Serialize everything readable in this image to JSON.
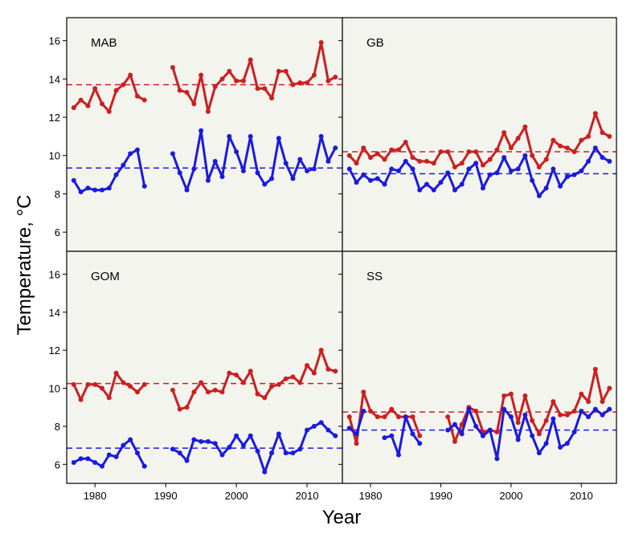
{
  "figure": {
    "ylabel": "Temperature, °C",
    "xlabel": "Year",
    "background": "#f4f4ef",
    "colors": {
      "red": "#cc1f1f",
      "blue": "#1a1ae0"
    }
  },
  "chart_data": [
    {
      "type": "line",
      "panel": "MAB",
      "xlim": [
        1976,
        2015
      ],
      "ylim": [
        5,
        17.2
      ],
      "x_ticks": [
        "1980",
        "1990",
        "2000",
        "2010"
      ],
      "y_ticks": [
        "6",
        "8",
        "10",
        "12",
        "14",
        "16"
      ],
      "x": [
        1977,
        1978,
        1979,
        1980,
        1981,
        1982,
        1983,
        1984,
        1985,
        1986,
        1987,
        1988,
        1989,
        1990,
        1991,
        1992,
        1993,
        1994,
        1995,
        1996,
        1997,
        1998,
        1999,
        2000,
        2001,
        2002,
        2003,
        2004,
        2005,
        2006,
        2007,
        2008,
        2009,
        2010,
        2011,
        2012,
        2013,
        2014
      ],
      "series": [
        {
          "color": "red",
          "mean": 13.7,
          "values": [
            12.5,
            12.9,
            12.6,
            13.5,
            12.7,
            12.3,
            13.4,
            13.7,
            14.2,
            13.1,
            12.9,
            null,
            null,
            null,
            14.6,
            13.4,
            13.3,
            12.7,
            14.2,
            12.3,
            13.6,
            14.0,
            14.4,
            13.9,
            13.9,
            15.0,
            13.5,
            13.5,
            13.0,
            14.4,
            14.4,
            13.7,
            13.8,
            13.8,
            14.2,
            15.9,
            13.9,
            14.1
          ]
        },
        {
          "color": "blue",
          "mean": 9.35,
          "values": [
            8.7,
            8.1,
            8.3,
            8.2,
            8.2,
            8.3,
            9.0,
            9.5,
            10.1,
            10.3,
            8.4,
            null,
            null,
            null,
            10.1,
            9.1,
            8.2,
            9.3,
            11.3,
            8.7,
            9.7,
            8.9,
            11.0,
            10.2,
            9.2,
            11.0,
            9.1,
            8.5,
            8.8,
            10.9,
            9.6,
            8.8,
            9.8,
            9.2,
            9.3,
            11.0,
            9.7,
            10.4
          ]
        }
      ]
    },
    {
      "type": "line",
      "panel": "GB",
      "xlim": [
        1976,
        2015
      ],
      "ylim": [
        5,
        17.2
      ],
      "x_ticks": [
        "1980",
        "1990",
        "2000",
        "2010"
      ],
      "y_ticks": [
        "6",
        "8",
        "10",
        "12",
        "14",
        "16"
      ],
      "x": [
        1977,
        1978,
        1979,
        1980,
        1981,
        1982,
        1983,
        1984,
        1985,
        1986,
        1987,
        1988,
        1989,
        1990,
        1991,
        1992,
        1993,
        1994,
        1995,
        1996,
        1997,
        1998,
        1999,
        2000,
        2001,
        2002,
        2003,
        2004,
        2005,
        2006,
        2007,
        2008,
        2009,
        2010,
        2011,
        2012,
        2013,
        2014
      ],
      "series": [
        {
          "color": "red",
          "mean": 10.2,
          "values": [
            10.0,
            9.6,
            10.4,
            9.9,
            10.1,
            9.8,
            10.3,
            10.3,
            10.7,
            9.9,
            9.7,
            9.7,
            9.6,
            10.2,
            10.2,
            9.4,
            9.6,
            10.2,
            10.2,
            9.5,
            9.8,
            10.3,
            11.2,
            10.4,
            10.9,
            11.5,
            10.0,
            9.4,
            9.8,
            10.8,
            10.5,
            10.4,
            10.2,
            10.8,
            11.0,
            12.2,
            11.2,
            11.0
          ]
        },
        {
          "color": "blue",
          "mean": 9.05,
          "values": [
            9.3,
            8.6,
            9.0,
            8.7,
            8.8,
            8.5,
            9.3,
            9.2,
            9.7,
            9.3,
            8.2,
            8.5,
            8.2,
            8.6,
            9.1,
            8.2,
            8.5,
            9.3,
            9.6,
            8.3,
            9.0,
            9.1,
            9.9,
            9.2,
            9.3,
            10.0,
            8.7,
            7.9,
            8.3,
            9.3,
            8.4,
            8.9,
            9.0,
            9.2,
            9.7,
            10.4,
            9.9,
            9.7
          ]
        }
      ]
    },
    {
      "type": "line",
      "panel": "GOM",
      "xlim": [
        1976,
        2015
      ],
      "ylim": [
        5,
        17.2
      ],
      "x_ticks": [
        "1980",
        "1990",
        "2000",
        "2010"
      ],
      "y_ticks": [
        "6",
        "8",
        "10",
        "12",
        "14",
        "16"
      ],
      "x": [
        1977,
        1978,
        1979,
        1980,
        1981,
        1982,
        1983,
        1984,
        1985,
        1986,
        1987,
        1988,
        1989,
        1990,
        1991,
        1992,
        1993,
        1994,
        1995,
        1996,
        1997,
        1998,
        1999,
        2000,
        2001,
        2002,
        2003,
        2004,
        2005,
        2006,
        2007,
        2008,
        2009,
        2010,
        2011,
        2012,
        2013,
        2014
      ],
      "series": [
        {
          "color": "red",
          "mean": 10.25,
          "values": [
            10.2,
            9.4,
            10.2,
            10.2,
            10.0,
            9.5,
            10.8,
            10.3,
            10.1,
            9.8,
            10.2,
            null,
            null,
            null,
            9.9,
            8.9,
            9.0,
            9.8,
            10.3,
            9.8,
            9.9,
            9.8,
            10.8,
            10.7,
            10.3,
            10.9,
            9.7,
            9.5,
            10.1,
            10.2,
            10.5,
            10.6,
            10.3,
            11.2,
            10.8,
            12.0,
            11.0,
            10.9
          ]
        },
        {
          "color": "blue",
          "mean": 6.85,
          "values": [
            6.1,
            6.3,
            6.3,
            6.1,
            5.9,
            6.5,
            6.4,
            7.0,
            7.3,
            6.6,
            5.9,
            null,
            null,
            null,
            6.8,
            6.6,
            6.2,
            7.3,
            7.2,
            7.2,
            7.1,
            6.5,
            6.9,
            7.5,
            7.0,
            7.5,
            6.7,
            5.6,
            6.6,
            7.6,
            6.6,
            6.6,
            6.8,
            7.8,
            8.0,
            8.2,
            7.8,
            7.5
          ]
        }
      ]
    },
    {
      "type": "line",
      "panel": "SS",
      "xlim": [
        1976,
        2015
      ],
      "ylim": [
        5,
        17.2
      ],
      "x_ticks": [
        "1980",
        "1990",
        "2000",
        "2010"
      ],
      "y_ticks": [
        "6",
        "8",
        "10",
        "12",
        "14",
        "16"
      ],
      "x": [
        1977,
        1978,
        1979,
        1980,
        1981,
        1982,
        1983,
        1984,
        1985,
        1986,
        1987,
        1988,
        1989,
        1990,
        1991,
        1992,
        1993,
        1994,
        1995,
        1996,
        1997,
        1998,
        1999,
        2000,
        2001,
        2002,
        2003,
        2004,
        2005,
        2006,
        2007,
        2008,
        2009,
        2010,
        2011,
        2012,
        2013,
        2014
      ],
      "series": [
        {
          "color": "red",
          "mean": 8.75,
          "values": [
            8.5,
            7.1,
            9.8,
            8.8,
            8.5,
            8.5,
            8.9,
            8.5,
            8.5,
            8.5,
            7.5,
            null,
            null,
            null,
            8.5,
            7.2,
            8.1,
            9.0,
            8.8,
            7.7,
            7.8,
            7.7,
            9.6,
            9.7,
            8.2,
            9.6,
            8.3,
            7.6,
            8.3,
            9.3,
            8.6,
            8.6,
            8.8,
            9.7,
            9.3,
            11.0,
            9.3,
            10.0
          ]
        },
        {
          "color": "blue",
          "mean": 7.8,
          "values": [
            7.9,
            7.6,
            8.8,
            null,
            null,
            7.4,
            7.5,
            6.5,
            8.5,
            7.6,
            7.1,
            null,
            null,
            null,
            7.8,
            8.1,
            7.6,
            8.9,
            8.0,
            7.5,
            7.8,
            6.3,
            8.9,
            8.5,
            7.3,
            8.6,
            7.5,
            6.6,
            7.1,
            8.4,
            6.9,
            7.1,
            7.7,
            8.8,
            8.5,
            8.9,
            8.6,
            8.9
          ]
        }
      ]
    }
  ]
}
